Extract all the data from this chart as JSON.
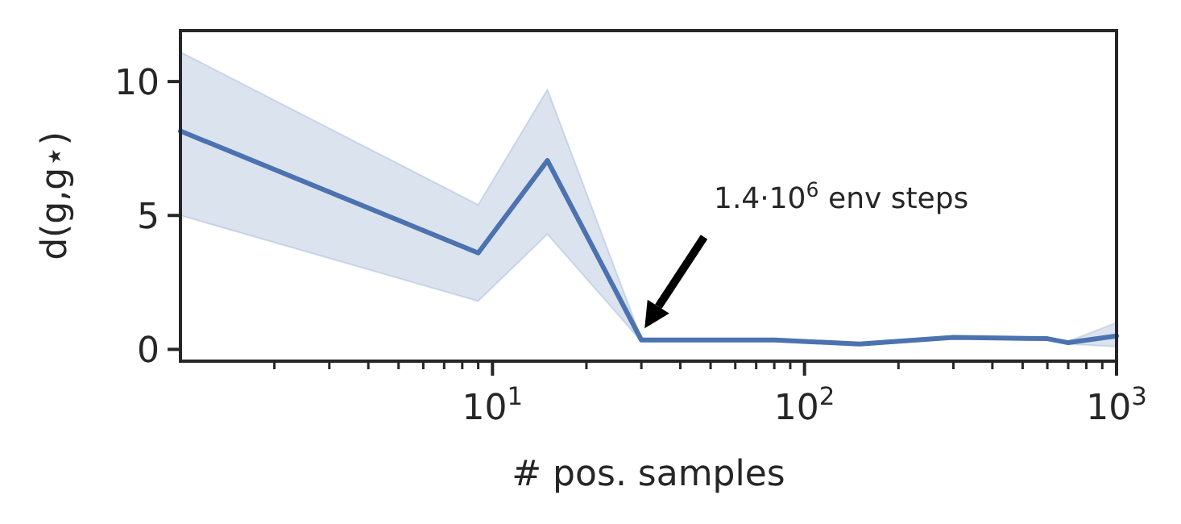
{
  "chart_data": {
    "type": "line",
    "xlabel": "# pos. samples",
    "ylabel": "d(g,g⋆)",
    "x": [
      1,
      9,
      15,
      30,
      80,
      150,
      300,
      600,
      700,
      1000
    ],
    "series": [
      {
        "color": "#4c72b0",
        "values": [
          8.15,
          3.6,
          7.05,
          0.35,
          0.35,
          0.2,
          0.45,
          0.4,
          0.25,
          0.5
        ],
        "lower": [
          5.0,
          1.8,
          4.3,
          0.3,
          0.3,
          0.15,
          0.4,
          0.35,
          0.2,
          0.1
        ],
        "upper": [
          11.1,
          5.4,
          9.7,
          0.4,
          0.4,
          0.25,
          0.5,
          0.45,
          0.3,
          1.0
        ]
      }
    ],
    "log": "x",
    "xlim": [
      1,
      1000
    ],
    "ylim": [
      -0.44,
      11.9
    ],
    "xticks": [
      {
        "value": 2,
        "label": null
      },
      {
        "value": 3,
        "label": null
      },
      {
        "value": 4,
        "label": null
      },
      {
        "value": 5,
        "label": null
      },
      {
        "value": 6,
        "label": null
      },
      {
        "value": 7,
        "label": null
      },
      {
        "value": 8,
        "label": null
      },
      {
        "value": 9,
        "label": null
      },
      {
        "value": 10,
        "label": "10$^{1}$"
      },
      {
        "value": 20,
        "label": null
      },
      {
        "value": 30,
        "label": null
      },
      {
        "value": 40,
        "label": null
      },
      {
        "value": 50,
        "label": null
      },
      {
        "value": 60,
        "label": null
      },
      {
        "value": 70,
        "label": null
      },
      {
        "value": 80,
        "label": null
      },
      {
        "value": 90,
        "label": null
      },
      {
        "value": 100,
        "label": "10$^{2}$"
      },
      {
        "value": 200,
        "label": null
      },
      {
        "value": 300,
        "label": null
      },
      {
        "value": 400,
        "label": null
      },
      {
        "value": 500,
        "label": null
      },
      {
        "value": 600,
        "label": null
      },
      {
        "value": 700,
        "label": null
      },
      {
        "value": 800,
        "label": null
      },
      {
        "value": 900,
        "label": null
      },
      {
        "value": 1000,
        "label": "10$^{3}$"
      }
    ],
    "yticks": [
      0,
      5,
      10
    ],
    "annotations": [
      "1.4·10$^{6}$ env steps"
    ]
  }
}
